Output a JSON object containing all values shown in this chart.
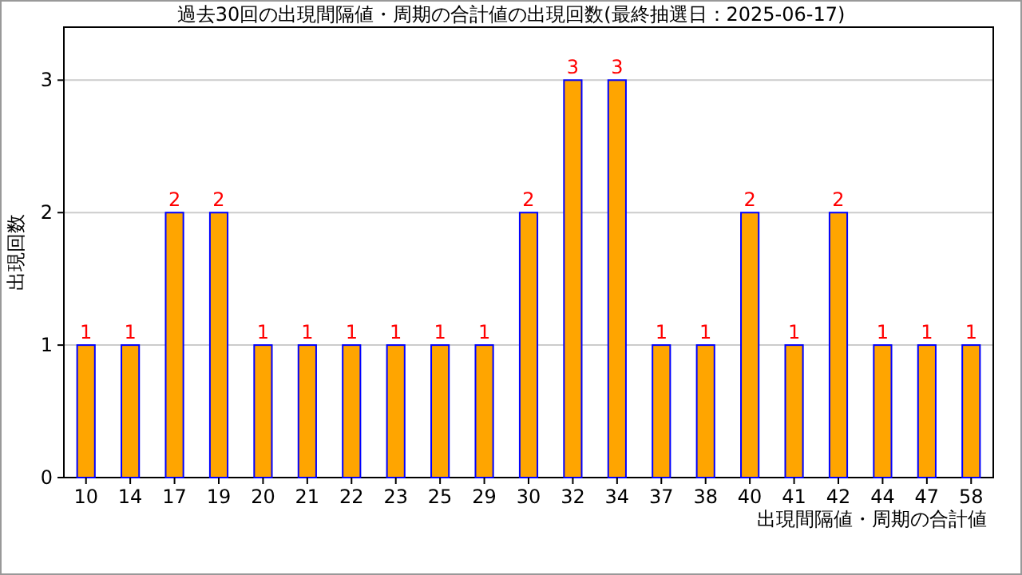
{
  "chart_data": {
    "type": "bar",
    "title": "過去30回の出現間隔値・周期の合計値の出現回数(最終抽選日：2025-06-17)",
    "xlabel": "出現間隔値・周期の合計値",
    "ylabel": "出現回数",
    "categories": [
      "10",
      "14",
      "17",
      "19",
      "20",
      "21",
      "22",
      "23",
      "25",
      "29",
      "30",
      "32",
      "34",
      "37",
      "38",
      "40",
      "41",
      "42",
      "44",
      "47",
      "58"
    ],
    "values": [
      1,
      1,
      2,
      2,
      1,
      1,
      1,
      1,
      1,
      1,
      2,
      3,
      3,
      1,
      1,
      2,
      1,
      2,
      1,
      1,
      1
    ],
    "color": "#ffa500",
    "ylim": [
      0,
      3.4
    ],
    "yticks": [
      0,
      1,
      2,
      3
    ],
    "grid": "y",
    "data_labels": true
  }
}
